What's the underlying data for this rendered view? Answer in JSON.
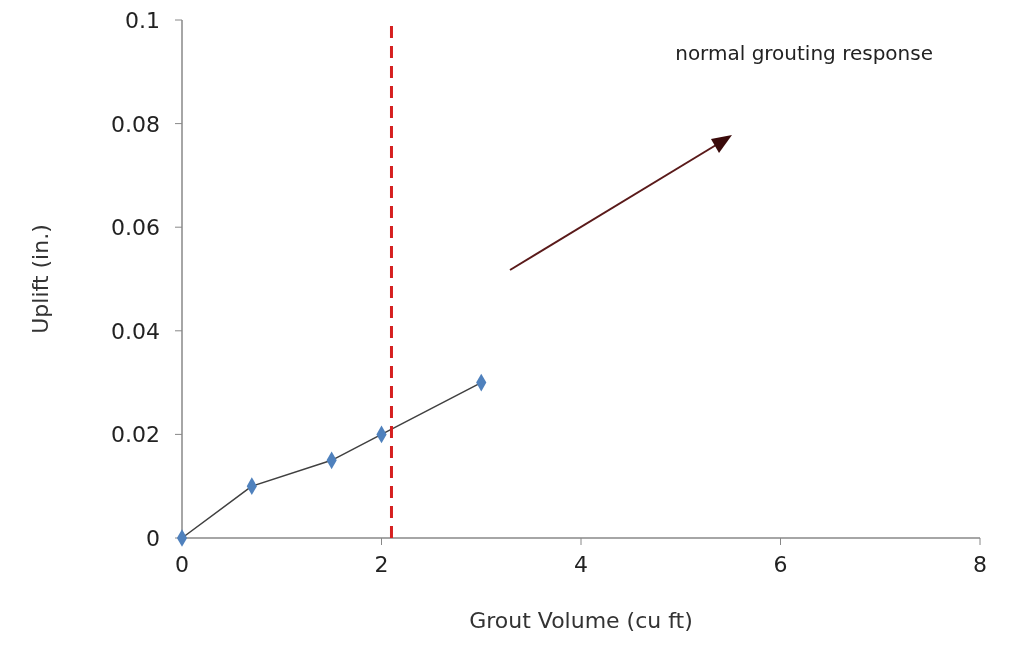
{
  "chart_data": {
    "type": "line",
    "xlabel": "Grout Volume  (cu ft)",
    "ylabel": "Uplift (in.)",
    "x": [
      0,
      0.7,
      1.5,
      2,
      3
    ],
    "series": [
      {
        "color": "#4f81bd",
        "values": [
          0,
          0.01,
          0.015,
          0.02,
          0.03
        ]
      }
    ],
    "marker": "diamond",
    "line_style": "solid",
    "xlim": [
      0,
      8
    ],
    "xticks": [
      0,
      2,
      4,
      6,
      8
    ],
    "ylim": [
      0,
      0.1
    ],
    "yticks": [
      0,
      0.02,
      0.04,
      0.06,
      0.08,
      0.1
    ],
    "grid": false,
    "ref_lines": [
      {
        "axis": "x",
        "value": 2.1,
        "color": "#d62020",
        "line_style": "dashed"
      }
    ],
    "annotations": [
      "normal grouting response"
    ]
  }
}
